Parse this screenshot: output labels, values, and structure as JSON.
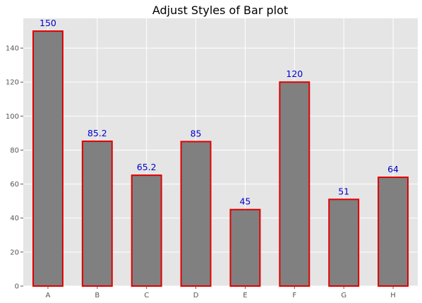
{
  "chart_data": {
    "type": "bar",
    "title": "Adjust Styles of Bar plot",
    "xlabel": "",
    "ylabel": "",
    "categories": [
      "A",
      "B",
      "C",
      "D",
      "E",
      "F",
      "G",
      "H"
    ],
    "values": [
      150,
      85.2,
      65.2,
      85,
      45,
      120,
      51,
      64
    ],
    "data_labels": [
      "150",
      "85.2",
      "65.2",
      "85",
      "45",
      "120",
      "51",
      "64"
    ],
    "ylim": [
      0,
      157.5
    ],
    "yticks": [
      0,
      20,
      40,
      60,
      80,
      100,
      120,
      140
    ],
    "grid": true,
    "colors": {
      "background": "#e5e5e5",
      "grid": "#ffffff",
      "bar_fill": "#808080",
      "bar_edge": "#e00000",
      "data_label": "#0000cc",
      "tick": "#555555"
    }
  }
}
